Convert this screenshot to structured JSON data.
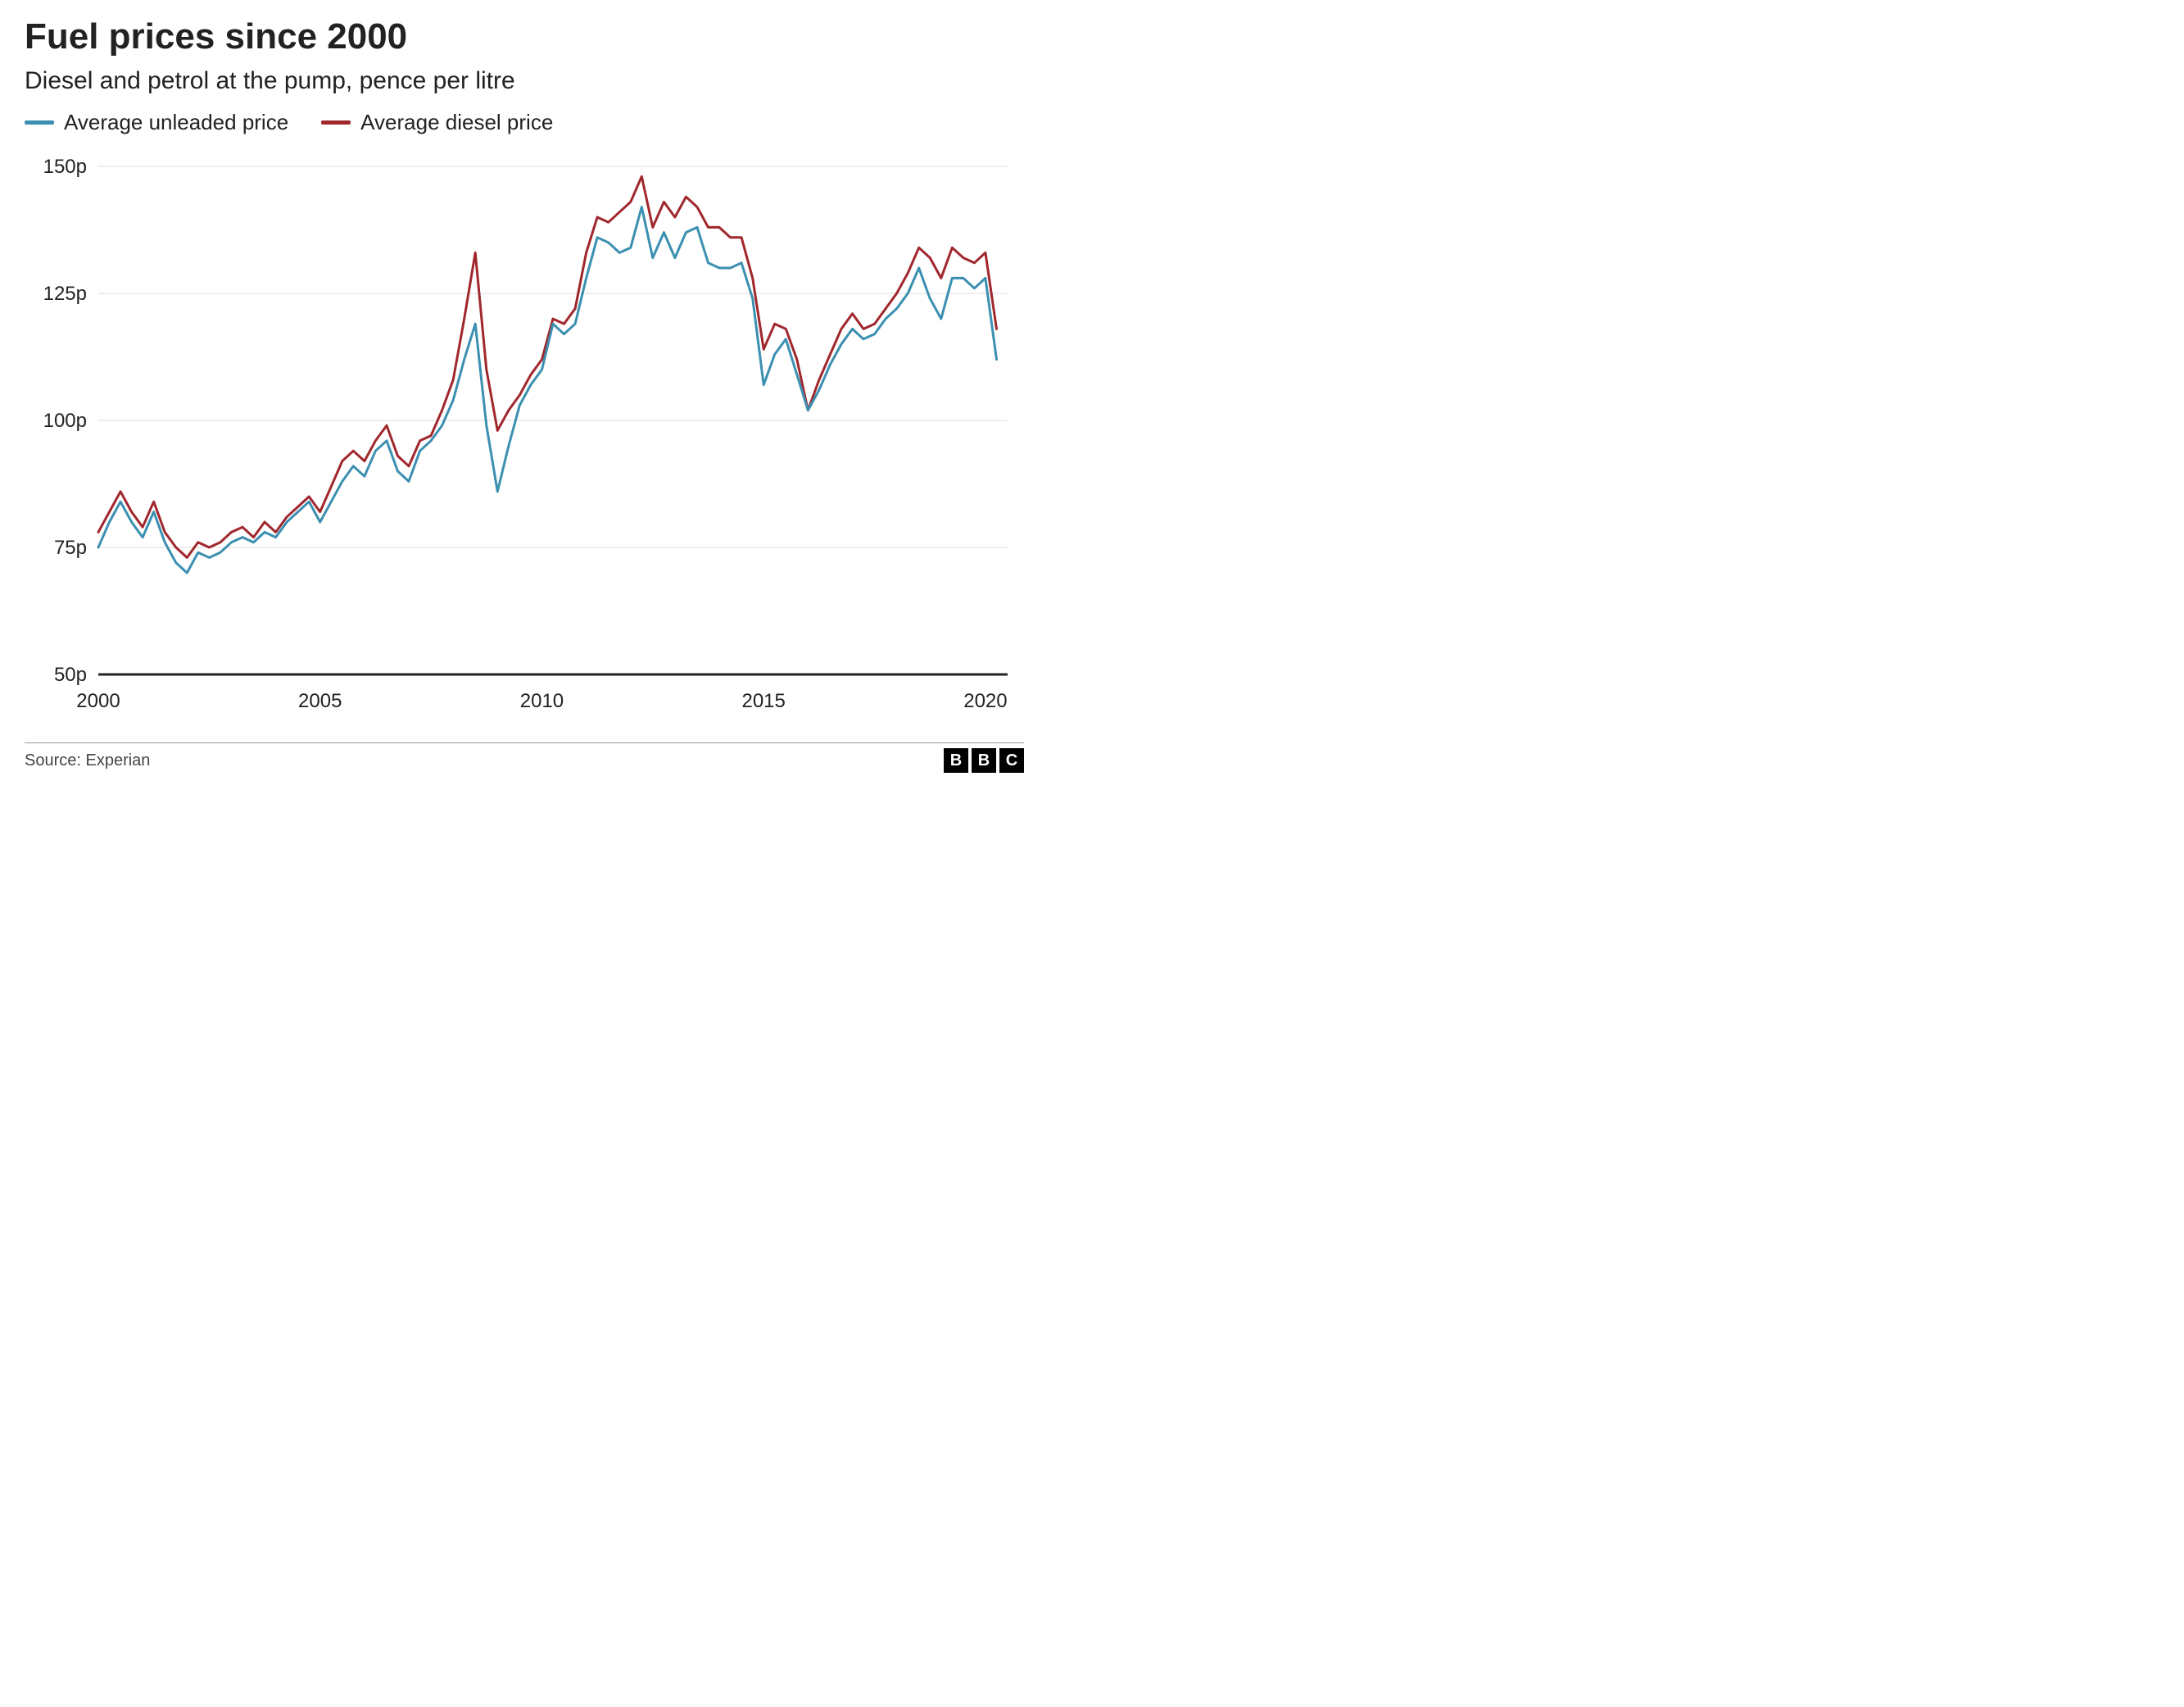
{
  "title": "Fuel prices since 2000",
  "subtitle": "Diesel and petrol at the pump, pence per litre",
  "legend": {
    "unleaded": {
      "label": "Average unleaded price",
      "color": "#3b8fb0"
    },
    "diesel": {
      "label": "Average diesel price",
      "color": "#a0272c"
    }
  },
  "chart": {
    "type": "line",
    "background_color": "#ffffff",
    "grid_color": "#dcdcdc",
    "axis_color": "#222222",
    "line_width": 3,
    "label_fontsize": 24,
    "x": {
      "min": 2000,
      "max": 2020.5,
      "ticks": [
        2000,
        2005,
        2010,
        2015,
        2020
      ]
    },
    "y": {
      "min": 50,
      "max": 150,
      "ticks": [
        50,
        75,
        100,
        125,
        150
      ],
      "suffix": "p"
    },
    "series": {
      "unleaded": {
        "color": "#3b8fb0",
        "x": [
          2000.0,
          2000.25,
          2000.5,
          2000.75,
          2001.0,
          2001.25,
          2001.5,
          2001.75,
          2002.0,
          2002.25,
          2002.5,
          2002.75,
          2003.0,
          2003.25,
          2003.5,
          2003.75,
          2004.0,
          2004.25,
          2004.5,
          2004.75,
          2005.0,
          2005.25,
          2005.5,
          2005.75,
          2006.0,
          2006.25,
          2006.5,
          2006.75,
          2007.0,
          2007.25,
          2007.5,
          2007.75,
          2008.0,
          2008.25,
          2008.5,
          2008.75,
          2009.0,
          2009.25,
          2009.5,
          2009.75,
          2010.0,
          2010.25,
          2010.5,
          2010.75,
          2011.0,
          2011.25,
          2011.5,
          2011.75,
          2012.0,
          2012.25,
          2012.5,
          2012.75,
          2013.0,
          2013.25,
          2013.5,
          2013.75,
          2014.0,
          2014.25,
          2014.5,
          2014.75,
          2015.0,
          2015.25,
          2015.5,
          2015.75,
          2016.0,
          2016.25,
          2016.5,
          2016.75,
          2017.0,
          2017.25,
          2017.5,
          2017.75,
          2018.0,
          2018.25,
          2018.5,
          2018.75,
          2019.0,
          2019.25,
          2019.5,
          2019.75,
          2020.0,
          2020.25
        ],
        "y": [
          75,
          80,
          84,
          80,
          77,
          82,
          76,
          72,
          70,
          74,
          73,
          74,
          76,
          77,
          76,
          78,
          77,
          80,
          82,
          84,
          80,
          84,
          88,
          91,
          89,
          94,
          96,
          90,
          88,
          94,
          96,
          99,
          104,
          112,
          119,
          99,
          86,
          95,
          103,
          107,
          110,
          119,
          117,
          119,
          128,
          136,
          135,
          133,
          134,
          142,
          132,
          137,
          132,
          137,
          138,
          131,
          130,
          130,
          131,
          124,
          107,
          113,
          116,
          109,
          102,
          106,
          111,
          115,
          118,
          116,
          117,
          120,
          122,
          125,
          130,
          124,
          120,
          128,
          128,
          126,
          128,
          112
        ]
      },
      "diesel": {
        "color": "#a0272c",
        "x": [
          2000.0,
          2000.25,
          2000.5,
          2000.75,
          2001.0,
          2001.25,
          2001.5,
          2001.75,
          2002.0,
          2002.25,
          2002.5,
          2002.75,
          2003.0,
          2003.25,
          2003.5,
          2003.75,
          2004.0,
          2004.25,
          2004.5,
          2004.75,
          2005.0,
          2005.25,
          2005.5,
          2005.75,
          2006.0,
          2006.25,
          2006.5,
          2006.75,
          2007.0,
          2007.25,
          2007.5,
          2007.75,
          2008.0,
          2008.25,
          2008.5,
          2008.75,
          2009.0,
          2009.25,
          2009.5,
          2009.75,
          2010.0,
          2010.25,
          2010.5,
          2010.75,
          2011.0,
          2011.25,
          2011.5,
          2011.75,
          2012.0,
          2012.25,
          2012.5,
          2012.75,
          2013.0,
          2013.25,
          2013.5,
          2013.75,
          2014.0,
          2014.25,
          2014.5,
          2014.75,
          2015.0,
          2015.25,
          2015.5,
          2015.75,
          2016.0,
          2016.25,
          2016.5,
          2016.75,
          2017.0,
          2017.25,
          2017.5,
          2017.75,
          2018.0,
          2018.25,
          2018.5,
          2018.75,
          2019.0,
          2019.25,
          2019.5,
          2019.75,
          2020.0,
          2020.25
        ],
        "y": [
          78,
          82,
          86,
          82,
          79,
          84,
          78,
          75,
          73,
          76,
          75,
          76,
          78,
          79,
          77,
          80,
          78,
          81,
          83,
          85,
          82,
          87,
          92,
          94,
          92,
          96,
          99,
          93,
          91,
          96,
          97,
          102,
          108,
          120,
          133,
          110,
          98,
          102,
          105,
          109,
          112,
          120,
          119,
          122,
          133,
          140,
          139,
          141,
          143,
          148,
          138,
          143,
          140,
          144,
          142,
          138,
          138,
          136,
          136,
          128,
          114,
          119,
          118,
          112,
          102,
          108,
          113,
          118,
          121,
          118,
          119,
          122,
          125,
          129,
          134,
          132,
          128,
          134,
          132,
          131,
          133,
          118
        ]
      }
    }
  },
  "footer": {
    "source": "Source: Experian",
    "logo": [
      "B",
      "B",
      "C"
    ]
  }
}
